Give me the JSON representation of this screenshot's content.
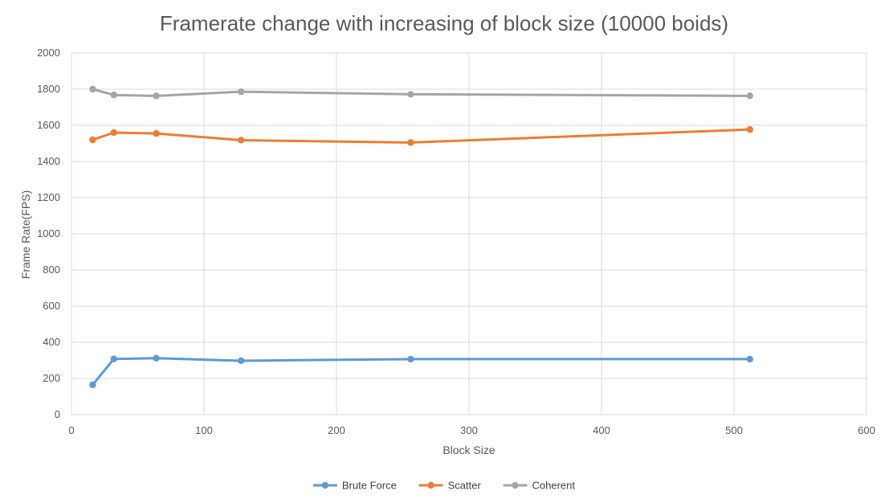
{
  "chart_data": {
    "type": "line",
    "title": "Framerate change with increasing of block size (10000 boids)",
    "xlabel": "Block Size",
    "ylabel": "Frame Rate(FPS)",
    "xlim": [
      0,
      600
    ],
    "ylim": [
      0,
      2000
    ],
    "x_ticks": [
      0,
      100,
      200,
      300,
      400,
      500,
      600
    ],
    "y_ticks": [
      0,
      200,
      400,
      600,
      800,
      1000,
      1200,
      1400,
      1600,
      1800,
      2000
    ],
    "grid": true,
    "legend_position": "bottom",
    "x": [
      16,
      32,
      64,
      128,
      256,
      512
    ],
    "series": [
      {
        "name": "Brute Force",
        "color": "#5b9bd5",
        "values": [
          165,
          308,
          312,
          298,
          307,
          307
        ]
      },
      {
        "name": "Scatter",
        "color": "#ed7d31",
        "values": [
          1520,
          1560,
          1555,
          1518,
          1505,
          1577
        ]
      },
      {
        "name": "Coherent",
        "color": "#a5a5a5",
        "values": [
          1800,
          1768,
          1763,
          1786,
          1772,
          1763
        ]
      }
    ]
  }
}
